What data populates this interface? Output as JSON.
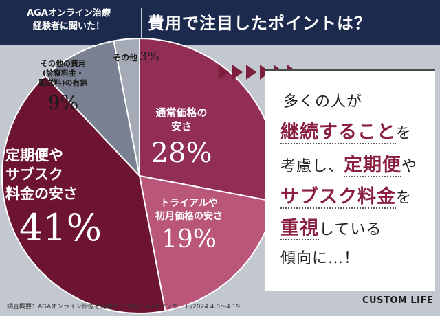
{
  "header": {
    "left_line1": "AGAオンライン治療",
    "left_line2": "経験者に聞いた！",
    "title": "費用で注目したポイントは？"
  },
  "chart_data": {
    "type": "pie",
    "title": "費用で注目したポイントは？",
    "slices": [
      {
        "label": "通常価格の安さ",
        "value": 28,
        "display": "28%",
        "color": "#922e55"
      },
      {
        "label": "トライアルや初月価格の安さ",
        "value": 19,
        "display": "19%",
        "color": "#b9567a"
      },
      {
        "label": "定期便やサブスク料金の安さ",
        "value": 41,
        "display": "41%",
        "color": "#6c1431"
      },
      {
        "label": "その他の費用(診察料金・配送料)の有無",
        "value": 9,
        "display": "9%",
        "color": "#7a8192"
      },
      {
        "label": "その他",
        "value": 3,
        "display": "3%",
        "color": "#a4aab6"
      }
    ]
  },
  "labels": {
    "regular_l1": "通常価格の",
    "regular_l2": "安さ",
    "regular_pct": "28%",
    "trial_l1": "トライアルや",
    "trial_l2": "初月価格の安さ",
    "trial_pct": "19%",
    "sub_l1": "定期便や",
    "sub_l2": "サブスク",
    "sub_l3": "料金の安さ",
    "sub_pct": "41%",
    "other_l1": "その他の費用",
    "other_l2": "(診察料金・",
    "other_l3": "配送料)の有無",
    "other_pct": "9%",
    "sono": "その他",
    "sono_pct": "3%"
  },
  "box": {
    "l1": "多くの人が",
    "l2a": "継続すること",
    "l2b": "を",
    "l3a": "考慮し、",
    "l3b": "定期便",
    "l3c": "や",
    "l4a": "サブスク料金",
    "l4b": "を",
    "l5a": "重視",
    "l5b": "している",
    "l6": "傾向に…！"
  },
  "footer": "調査概要：AGAオンライン診療を利用する68名へWEBアンケート/2024.4.8〜4.19",
  "brand": "CUSTOM LIFE"
}
